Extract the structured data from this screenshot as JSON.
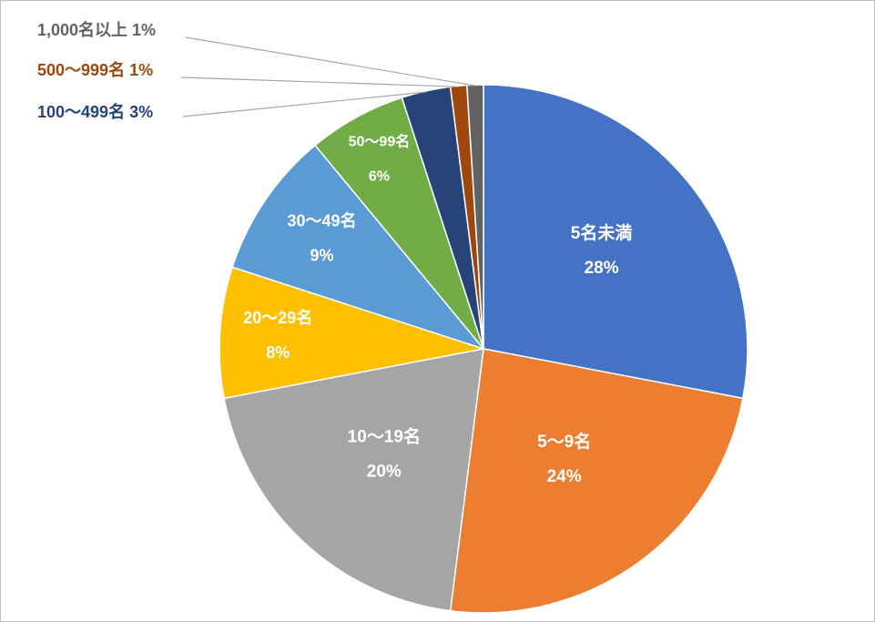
{
  "chart_data": {
    "type": "pie",
    "title": "",
    "start_angle_deg": 0,
    "direction": "clockwise",
    "slices": [
      {
        "name": "5名未満",
        "value": 28,
        "label": "28%",
        "color": "#4472C4",
        "label_style": "inside"
      },
      {
        "name": "5～9名",
        "value": 24,
        "label": "24%",
        "color": "#ED7D31",
        "label_style": "inside"
      },
      {
        "name": "10～19名",
        "value": 20,
        "label": "20%",
        "color": "#A5A5A5",
        "label_style": "inside"
      },
      {
        "name": "20～29名",
        "value": 8,
        "label": "8%",
        "color": "#FFC000",
        "label_style": "inside"
      },
      {
        "name": "30～49名",
        "value": 9,
        "label": "9%",
        "color": "#5B9BD5",
        "label_style": "inside"
      },
      {
        "name": "50～99名",
        "value": 6,
        "label": "6%",
        "color": "#70AD47",
        "label_style": "inside"
      },
      {
        "name": "100～499名",
        "value": 3,
        "label": "3%",
        "color": "#264478",
        "label_style": "outside",
        "label_color": "#264478"
      },
      {
        "name": "500～999名",
        "value": 1,
        "label": "1%",
        "color": "#9E480E",
        "label_style": "outside",
        "label_color": "#9E480E"
      },
      {
        "name": "1,000名以上",
        "value": 1,
        "label": "1%",
        "color": "#636363",
        "label_style": "outside",
        "label_color": "#636363"
      }
    ]
  }
}
